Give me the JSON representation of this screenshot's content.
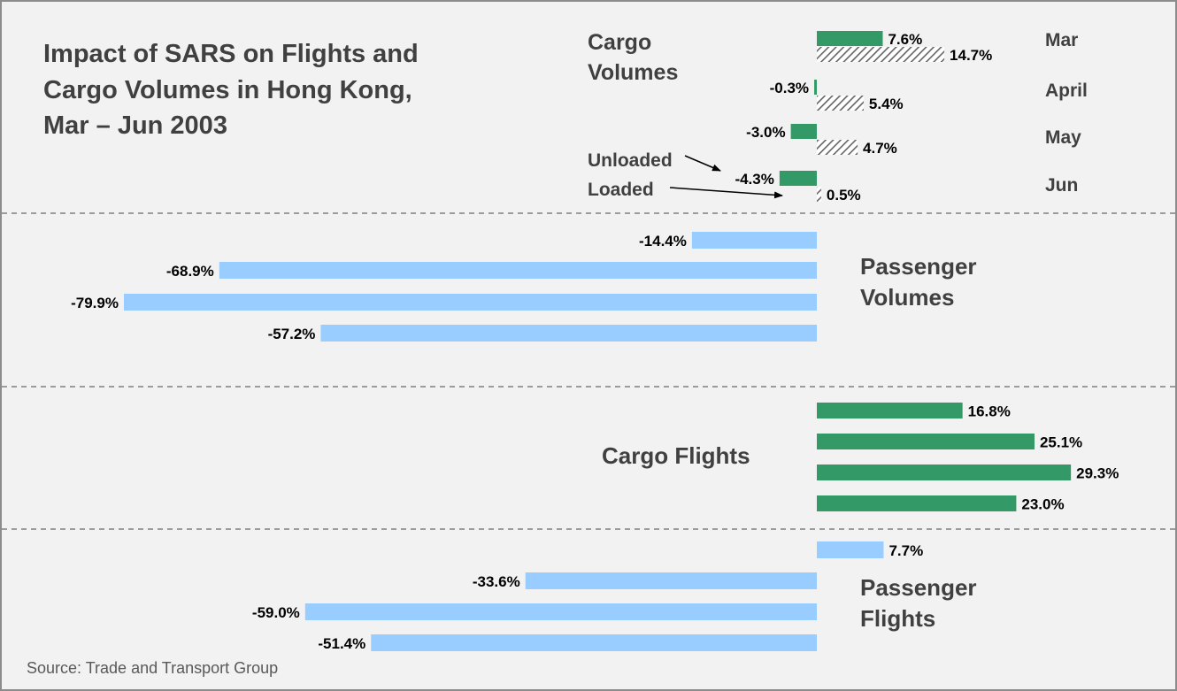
{
  "title": "Impact of SARS on Flights and Cargo Volumes in Hong Kong, Mar – Jun 2003",
  "source": "Source: Trade and Transport Group",
  "colors": {
    "green": "#339966",
    "light_blue": "#99ccff",
    "hatch": "#666666",
    "text_dark": "#404040",
    "background": "#f2f2f2",
    "divider": "#7f7f7f"
  },
  "annotations": {
    "unloaded": "Unloaded",
    "loaded": "Loaded"
  },
  "chart_data": {
    "type": "bar",
    "orientation": "horizontal",
    "categories": [
      "Mar",
      "April",
      "May",
      "Jun"
    ],
    "panels": [
      {
        "title": "Cargo Volumes",
        "series": [
          {
            "name": "Unloaded",
            "values": [
              7.6,
              -0.3,
              -3.0,
              -4.3
            ],
            "labels": [
              "7.6%",
              "-0.3%",
              "-3.0%",
              "-4.3%"
            ],
            "color": "#339966",
            "pattern": "solid"
          },
          {
            "name": "Loaded",
            "values": [
              14.7,
              5.4,
              4.7,
              0.5
            ],
            "labels": [
              "14.7%",
              "5.4%",
              "4.7%",
              "0.5%"
            ],
            "color": "#666666",
            "pattern": "hatched"
          }
        ]
      },
      {
        "title": "Passenger Volumes",
        "series": [
          {
            "values": [
              -14.4,
              -68.9,
              -79.9,
              -57.2
            ],
            "labels": [
              "-14.4%",
              "-68.9%",
              "-79.9%",
              "-57.2%"
            ],
            "color": "#99ccff",
            "pattern": "solid"
          }
        ]
      },
      {
        "title": "Cargo Flights",
        "series": [
          {
            "values": [
              16.8,
              25.1,
              29.3,
              23.0
            ],
            "labels": [
              "16.8%",
              "25.1%",
              "29.3%",
              "23.0%"
            ],
            "color": "#339966",
            "pattern": "solid"
          }
        ]
      },
      {
        "title": "Passenger Flights",
        "series": [
          {
            "values": [
              7.7,
              -33.6,
              -59.0,
              -51.4
            ],
            "labels": [
              "7.7%",
              "-33.6%",
              "-59.0%",
              "-51.4%"
            ],
            "color": "#99ccff",
            "pattern": "solid"
          }
        ]
      }
    ]
  }
}
